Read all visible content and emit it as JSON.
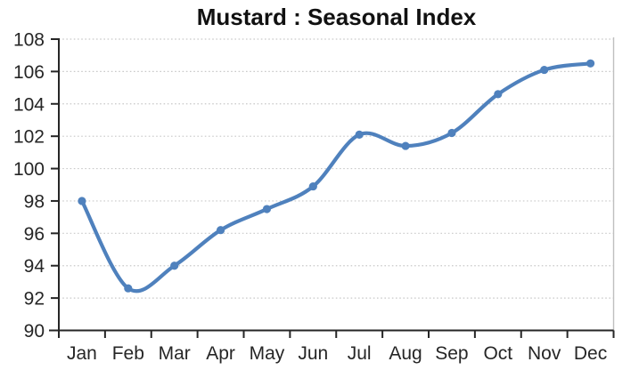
{
  "title": "Mustard : Seasonal Index",
  "chart_data": {
    "type": "line",
    "title": "Mustard : Seasonal Index",
    "categories": [
      "Jan",
      "Feb",
      "Mar",
      "Apr",
      "May",
      "Jun",
      "Jul",
      "Aug",
      "Sep",
      "Oct",
      "Nov",
      "Dec"
    ],
    "series": [
      {
        "name": "Seasonal Index",
        "values": [
          98,
          92.6,
          94,
          96.2,
          97.5,
          98.9,
          102.1,
          101.4,
          102.2,
          104.6,
          106.1,
          106.5
        ]
      }
    ],
    "xlabel": "",
    "ylabel": "",
    "ylim": [
      90,
      108
    ],
    "yticks": [
      90,
      92,
      94,
      96,
      98,
      100,
      102,
      104,
      106,
      108
    ],
    "grid": "horizontal-dotted",
    "legend": "none",
    "line_style": "smoothed",
    "marker": "circle",
    "colors": {
      "line": "#4F81BD",
      "marker": "#4F81BD",
      "axis": "#262626",
      "grid": "#c9c9c9",
      "plot_border": "#bfbfbf",
      "tick_text": "#262626",
      "title_text": "#111111"
    }
  }
}
